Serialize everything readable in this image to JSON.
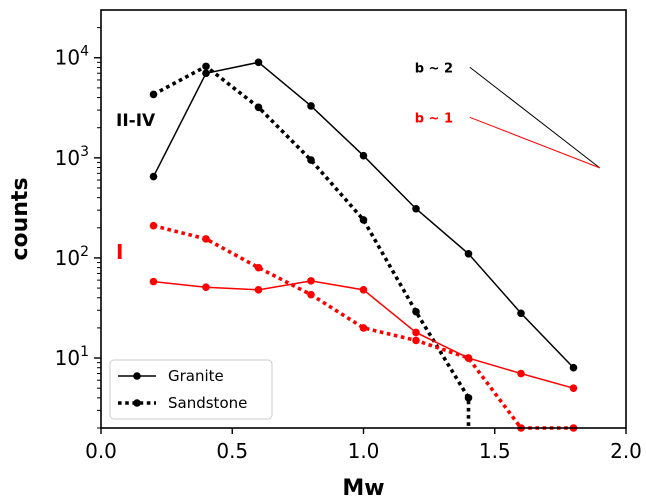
{
  "chart_data": {
    "type": "line",
    "xlabel": "Mw",
    "ylabel": "counts",
    "xlim": [
      0.0,
      2.0
    ],
    "ylim_log10": [
      0.301,
      4.477
    ],
    "yscale": "log",
    "x_ticks": [
      "0.0",
      "0.5",
      "1.0",
      "1.5",
      "2.0"
    ],
    "legend": {
      "placement": "lower-left",
      "entries": [
        {
          "label": "Granite",
          "style": "solid"
        },
        {
          "label": "Sandstone",
          "style": "dotted"
        }
      ]
    },
    "groups": [
      {
        "label": "II-IV",
        "color": "#000000"
      },
      {
        "label": "I",
        "color": "#ff0000"
      }
    ],
    "series": [
      {
        "name": "Granite",
        "group": "II-IV",
        "color": "#000000",
        "style": "solid",
        "x": [
          0.2,
          0.4,
          0.6,
          0.8,
          1.0,
          1.2,
          1.4,
          1.6,
          1.8
        ],
        "y": [
          650,
          7000,
          9000,
          3300,
          1050,
          310,
          110,
          28,
          8
        ]
      },
      {
        "name": "Sandstone",
        "group": "II-IV",
        "color": "#000000",
        "style": "dotted",
        "x": [
          0.2,
          0.4,
          0.6,
          0.8,
          1.0,
          1.2,
          1.4
        ],
        "y": [
          4300,
          8200,
          3200,
          950,
          240,
          29,
          4
        ],
        "tail_to_bottom": true
      },
      {
        "name": "Granite",
        "group": "I",
        "color": "#ff0000",
        "style": "solid",
        "x": [
          0.2,
          0.4,
          0.6,
          0.8,
          1.0,
          1.2,
          1.4,
          1.6,
          1.8
        ],
        "y": [
          58,
          51,
          48,
          59,
          48,
          18,
          10,
          7,
          5
        ]
      },
      {
        "name": "Sandstone",
        "group": "I",
        "color": "#ff0000",
        "style": "dotted",
        "x": [
          0.2,
          0.4,
          0.6,
          0.8,
          1.0,
          1.2,
          1.4,
          1.6,
          1.8
        ],
        "y": [
          210,
          155,
          80,
          43,
          20,
          15,
          10,
          2,
          2
        ]
      }
    ],
    "annotations": [
      {
        "text": "b ~ 2",
        "color": "#000000",
        "line": {
          "x": [
            1.405,
            1.9
          ],
          "y_log10": [
            3.905,
            2.9
          ]
        }
      },
      {
        "text": "b ~ 1",
        "color": "#ff0000",
        "line": {
          "x": [
            1.405,
            1.9
          ],
          "y_log10": [
            3.405,
            2.9
          ]
        }
      }
    ]
  }
}
